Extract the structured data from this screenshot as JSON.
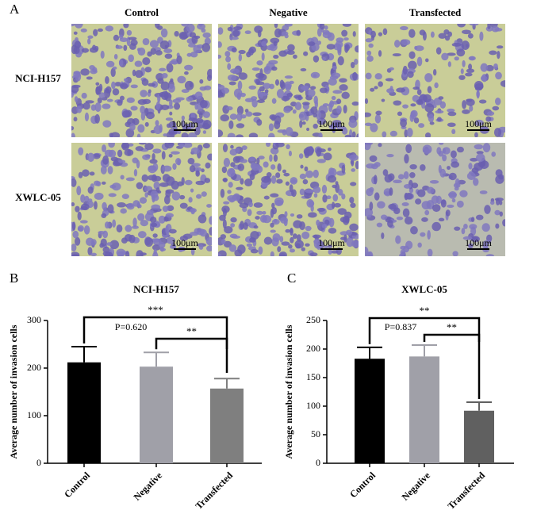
{
  "panel_a": {
    "letter": "A",
    "columns": [
      "Control",
      "Negative",
      "Transfected"
    ],
    "rows": [
      "NCI-H157",
      "XWLC-05"
    ],
    "scale_bar": "100μm"
  },
  "chart_data": [
    {
      "type": "bar",
      "letter": "B",
      "title": "NCI-H157",
      "y_label": "Average number of invasion cells",
      "categories": [
        "Control",
        "Negative",
        "Transfected"
      ],
      "values": [
        212,
        203,
        157
      ],
      "errors": [
        33,
        30,
        21
      ],
      "colors": [
        "#000000",
        "#a0a0a8",
        "#7f7f7f"
      ],
      "ylim": [
        0,
        300
      ],
      "yticks": [
        0,
        100,
        200,
        300
      ],
      "annotations": [
        "***",
        "**",
        "P=0.620"
      ]
    },
    {
      "type": "bar",
      "letter": "C",
      "title": "XWLC-05",
      "y_label": "Average number of invasion cells",
      "categories": [
        "Control",
        "Negative",
        "Transfected"
      ],
      "values": [
        183,
        187,
        92
      ],
      "errors": [
        20,
        20,
        15
      ],
      "colors": [
        "#000000",
        "#a0a0a8",
        "#606060"
      ],
      "ylim": [
        0,
        250
      ],
      "yticks": [
        0,
        50,
        100,
        150,
        200,
        250
      ],
      "annotations": [
        "**",
        "**",
        "P=0.837"
      ]
    }
  ]
}
